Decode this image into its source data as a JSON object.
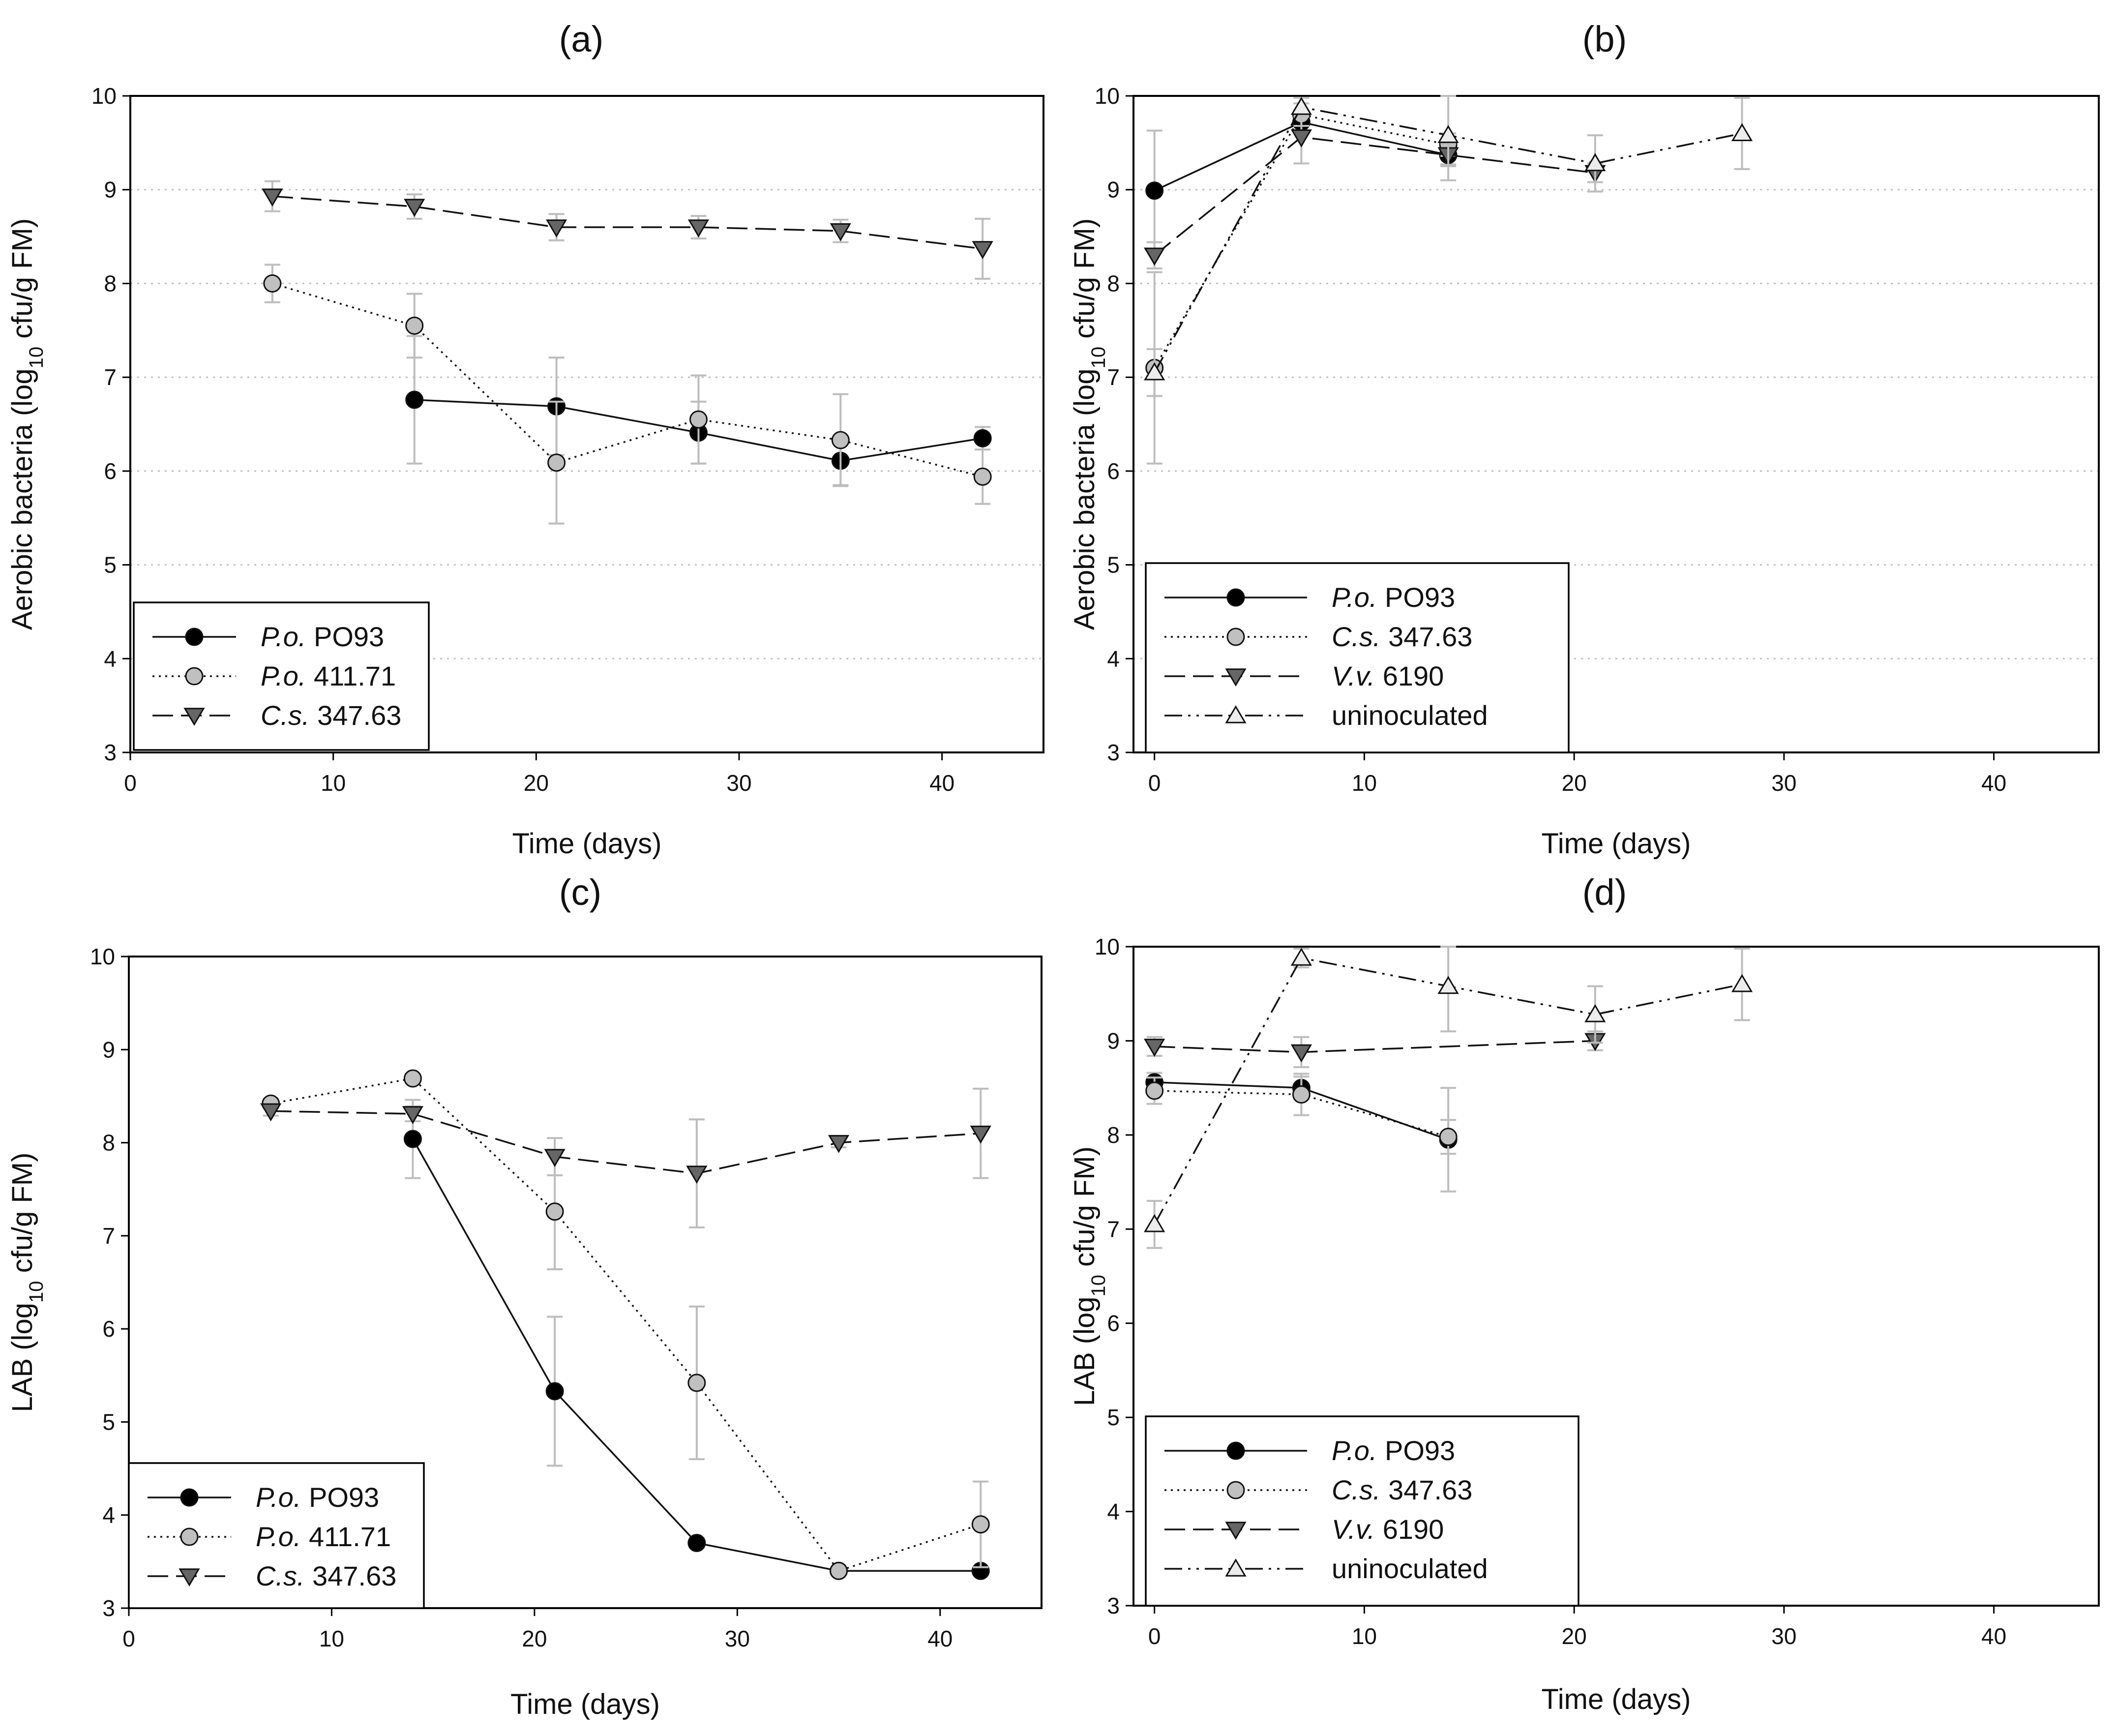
{
  "figure": {
    "colors": {
      "black": "#000000",
      "gray": "#c0c0c0",
      "dark_gray": "#666666",
      "light_gray": "#ececec",
      "error_bar": "#bdbdbd",
      "grid": "#bfbfbf"
    }
  },
  "chart_data": [
    {
      "id": "a",
      "type": "line",
      "title": "(a)",
      "xlabel": "Time (days)",
      "ylabel_parts": [
        "Aerobic bacteria (log",
        "10",
        " cfu/g FM)"
      ],
      "xlim": [
        0,
        45
      ],
      "ylim": [
        3,
        10
      ],
      "xticks": [
        0,
        10,
        20,
        30,
        40
      ],
      "yticks": [
        3,
        4,
        5,
        6,
        7,
        8,
        9,
        10
      ],
      "grid": "horizontal dotted",
      "legend_position": "bottom-left",
      "series": [
        {
          "name_italic": "P.o.",
          "name_rest": " PO93",
          "marker": "circle",
          "color": "#000000",
          "line_style": "solid",
          "x": [
            14,
            21,
            28,
            35,
            42
          ],
          "y": [
            6.76,
            6.69,
            6.41,
            6.11,
            6.35
          ],
          "err": [
            0.68,
            0.52,
            0.33,
            0.26,
            0.12
          ]
        },
        {
          "name_italic": "P.o.",
          "name_rest": " 411.71",
          "marker": "circle",
          "color": "#c0c0c0",
          "line_style": "dotted",
          "x": [
            7,
            14,
            21,
            28,
            35,
            42
          ],
          "y": [
            8.0,
            7.55,
            6.09,
            6.55,
            6.33,
            5.94
          ],
          "err": [
            0.2,
            0.34,
            0.65,
            0.47,
            0.49,
            0.29
          ]
        },
        {
          "name_italic": "C.s.",
          "name_rest": " 347.63",
          "marker": "triangle-down",
          "color": "#666666",
          "line_style": "dashed",
          "x": [
            7,
            14,
            21,
            28,
            35,
            42
          ],
          "y": [
            8.93,
            8.82,
            8.6,
            8.6,
            8.56,
            8.37
          ],
          "err": [
            0.16,
            0.13,
            0.14,
            0.12,
            0.12,
            0.32
          ]
        }
      ]
    },
    {
      "id": "b",
      "type": "line",
      "title": "(b)",
      "xlabel": "Time (days)",
      "ylabel_parts": [
        "Aerobic bacteria (log",
        "10",
        " cfu/g FM)"
      ],
      "xlim": [
        -1,
        45
      ],
      "ylim": [
        3,
        10
      ],
      "xticks": [
        0,
        10,
        20,
        30,
        40
      ],
      "yticks": [
        3,
        4,
        5,
        6,
        7,
        8,
        9,
        10
      ],
      "grid": "horizontal dotted",
      "legend_position": "bottom-left",
      "series": [
        {
          "name_italic": "P.o.",
          "name_rest": " PO93",
          "marker": "circle",
          "color": "#000000",
          "line_style": "solid",
          "x": [
            0,
            7,
            14
          ],
          "y": [
            8.99,
            9.72,
            9.37
          ],
          "err": [
            0.64,
            0.1,
            0.1
          ]
        },
        {
          "name_italic": "C.s.",
          "name_rest": " 347.63",
          "marker": "circle",
          "color": "#c0c0c0",
          "line_style": "dotted",
          "x": [
            0,
            7,
            14
          ],
          "y": [
            7.1,
            9.8,
            9.48
          ],
          "err": [
            1.02,
            0.12,
            0.12
          ]
        },
        {
          "name_italic": "V.v.",
          "name_rest": " 6190",
          "marker": "triangle-down",
          "color": "#666666",
          "line_style": "dashed",
          "x": [
            0,
            7,
            14,
            21
          ],
          "y": [
            8.3,
            9.56,
            9.37,
            9.18
          ],
          "err": [
            0.14,
            0.28,
            0.12,
            0.1
          ]
        },
        {
          "name_italic": "",
          "name_rest": "uninoculated",
          "marker": "triangle-up",
          "color": "#ececec",
          "line_style": "dashdotdot",
          "x": [
            0,
            7,
            14,
            21,
            28
          ],
          "y": [
            7.05,
            9.88,
            9.58,
            9.28,
            9.6
          ],
          "err": [
            0.25,
            0.1,
            0.48,
            0.3,
            0.38
          ]
        }
      ]
    },
    {
      "id": "c",
      "type": "line",
      "title": "(c)",
      "xlabel": "Time (days)",
      "ylabel_parts": [
        "LAB (log",
        "10",
        " cfu/g FM)"
      ],
      "xlim": [
        0,
        45
      ],
      "ylim": [
        3,
        10
      ],
      "xticks": [
        0,
        10,
        20,
        30,
        40
      ],
      "yticks": [
        3,
        4,
        5,
        6,
        7,
        8,
        9,
        10
      ],
      "grid": "none",
      "legend_position": "bottom-left",
      "series": [
        {
          "name_italic": "P.o.",
          "name_rest": " PO93",
          "marker": "circle",
          "color": "#000000",
          "line_style": "solid",
          "x": [
            14,
            21,
            28,
            35,
            42
          ],
          "y": [
            8.04,
            5.33,
            3.7,
            3.4,
            3.4
          ],
          "err": [
            0.42,
            0.8,
            0.05,
            0.04,
            0.04
          ]
        },
        {
          "name_italic": "P.o.",
          "name_rest": " 411.71",
          "marker": "circle",
          "color": "#c0c0c0",
          "line_style": "dotted",
          "x": [
            7,
            14,
            21,
            28,
            35,
            42
          ],
          "y": [
            8.42,
            8.69,
            7.26,
            5.42,
            3.4,
            3.9
          ],
          "err": [
            0.05,
            0.05,
            0.62,
            0.82,
            0.04,
            0.46
          ]
        },
        {
          "name_italic": "C.s.",
          "name_rest": " 347.63",
          "marker": "triangle-down",
          "color": "#666666",
          "line_style": "dashed",
          "x": [
            7,
            14,
            21,
            28,
            35,
            42
          ],
          "y": [
            8.34,
            8.31,
            7.85,
            7.67,
            8.0,
            8.1
          ],
          "err": [
            0.05,
            0.08,
            0.2,
            0.58,
            0.05,
            0.48
          ]
        }
      ]
    },
    {
      "id": "d",
      "type": "line",
      "title": "(d)",
      "xlabel": "Time (days)",
      "ylabel_parts": [
        "LAB (log",
        "10",
        " cfu/g FM)"
      ],
      "xlim": [
        -1,
        45
      ],
      "ylim": [
        3,
        10
      ],
      "xticks": [
        0,
        10,
        20,
        30,
        40
      ],
      "yticks": [
        3,
        4,
        5,
        6,
        7,
        8,
        9,
        10
      ],
      "grid": "none",
      "legend_position": "bottom-left",
      "series": [
        {
          "name_italic": "P.o.",
          "name_rest": " PO93",
          "marker": "circle",
          "color": "#000000",
          "line_style": "solid",
          "x": [
            0,
            7,
            14
          ],
          "y": [
            8.56,
            8.5,
            7.95
          ],
          "err": [
            0.1,
            0.12,
            0.55
          ]
        },
        {
          "name_italic": "C.s.",
          "name_rest": " 347.63",
          "marker": "circle",
          "color": "#c0c0c0",
          "line_style": "dotted",
          "x": [
            0,
            7,
            14
          ],
          "y": [
            8.47,
            8.43,
            7.98
          ],
          "err": [
            0.14,
            0.22,
            0.18
          ]
        },
        {
          "name_italic": "V.v.",
          "name_rest": " 6190",
          "marker": "triangle-down",
          "color": "#666666",
          "line_style": "dashed",
          "x": [
            0,
            7,
            21
          ],
          "y": [
            8.94,
            8.88,
            9.0
          ],
          "err": [
            0.1,
            0.16,
            0.1
          ]
        },
        {
          "name_italic": "",
          "name_rest": "uninoculated",
          "marker": "triangle-up",
          "color": "#ececec",
          "line_style": "dashdotdot",
          "x": [
            0,
            7,
            14,
            21,
            28
          ],
          "y": [
            7.05,
            9.88,
            9.58,
            9.28,
            9.6
          ],
          "err": [
            0.25,
            0.1,
            0.48,
            0.3,
            0.38
          ]
        }
      ]
    }
  ]
}
